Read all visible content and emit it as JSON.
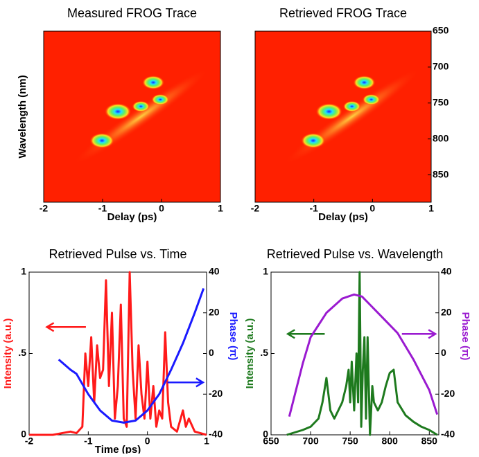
{
  "chart_data": [
    {
      "type": "heatmap",
      "title": "Measured FROG Trace",
      "xlabel": "Delay (ps)",
      "ylabel": "Wavelength (nm)",
      "xlim": [
        -2,
        1
      ],
      "xticks": [
        -2,
        -1,
        0,
        1
      ],
      "color": "#ff2000"
    },
    {
      "type": "heatmap",
      "title": "Retrieved FROG Trace",
      "xlabel": "Delay (ps)",
      "xlim": [
        -2,
        1
      ],
      "xticks": [
        -2,
        -1,
        0,
        1
      ],
      "ylim": [
        888,
        650
      ],
      "yticks": [
        650,
        700,
        750,
        800,
        850
      ],
      "y_axis_side": "right",
      "color": "#ff2000"
    },
    {
      "type": "line",
      "title": "Retrieved Pulse vs. Time",
      "xlabel": "Time (ps)",
      "ylabel": "Intensity (a.u.)",
      "y2label": "Phase (π)",
      "xlim": [
        -2,
        1
      ],
      "xticks": [
        -2,
        -1,
        0,
        1
      ],
      "ylim": [
        0,
        1
      ],
      "yticks": [
        0,
        {
          "value": 0.5,
          "label": ".5"
        },
        1
      ],
      "y2lim": [
        -40,
        40
      ],
      "y2ticks": [
        -40,
        -20,
        0,
        20,
        40
      ],
      "series": [
        {
          "name": "Intensity",
          "color": "#ff1a1a",
          "axis": "y",
          "x": [
            -2,
            -1.6,
            -1.3,
            -1.2,
            -1.1,
            -1.05,
            -1.0,
            -0.95,
            -0.9,
            -0.85,
            -0.8,
            -0.75,
            -0.7,
            -0.65,
            -0.6,
            -0.55,
            -0.5,
            -0.45,
            -0.4,
            -0.35,
            -0.3,
            -0.25,
            -0.2,
            -0.15,
            -0.1,
            -0.05,
            0,
            0.05,
            0.1,
            0.15,
            0.2,
            0.25,
            0.3,
            0.35,
            0.4,
            0.5,
            0.6,
            0.65,
            0.7,
            0.8,
            1.0
          ],
          "values": [
            0,
            0,
            0.02,
            0.01,
            0.05,
            0.5,
            0.3,
            0.6,
            0.2,
            0.55,
            0.35,
            0.4,
            0.95,
            0.3,
            0.75,
            0.1,
            0.3,
            0.8,
            0.1,
            0.05,
            1.0,
            0.4,
            0.1,
            0.55,
            0.25,
            0.1,
            0.45,
            0.1,
            0.3,
            0.05,
            0.15,
            0.1,
            0.63,
            0.2,
            0.05,
            0.02,
            0.15,
            0.05,
            0.1,
            0.02,
            0
          ]
        },
        {
          "name": "Phase",
          "color": "#1a1aff",
          "axis": "y2",
          "x": [
            -1.5,
            -1.3,
            -1.2,
            -1.1,
            -1.0,
            -0.8,
            -0.6,
            -0.4,
            -0.2,
            0,
            0.2,
            0.4,
            0.6,
            0.8,
            0.95
          ],
          "values": [
            -3,
            -8,
            -10,
            -15,
            -20,
            -28,
            -33,
            -34,
            -33,
            -28,
            -20,
            -8,
            5,
            20,
            32
          ]
        }
      ]
    },
    {
      "type": "line",
      "title": "Retrieved Pulse vs. Wavelength",
      "ylabel": "Intensity (a.u.)",
      "y2label": "Phase (π)",
      "xlim": [
        650,
        862
      ],
      "xticks": [
        650,
        700,
        750,
        800,
        850
      ],
      "ylim": [
        0,
        1
      ],
      "yticks": [
        0,
        {
          "value": 0.5,
          "label": ".5"
        },
        1
      ],
      "y2lim": [
        -40,
        40
      ],
      "y2ticks": [
        -40,
        -20,
        0,
        20,
        40
      ],
      "series": [
        {
          "name": "Intensity",
          "color": "#1e7a1e",
          "axis": "y",
          "x": [
            670,
            690,
            700,
            710,
            715,
            720,
            725,
            730,
            740,
            745,
            748,
            750,
            752,
            755,
            758,
            760,
            762,
            764,
            766,
            768,
            770,
            772,
            775,
            778,
            780,
            785,
            790,
            795,
            800,
            805,
            810,
            820,
            830,
            840,
            850,
            860
          ],
          "values": [
            0,
            0.03,
            0.05,
            0.1,
            0.2,
            0.35,
            0.15,
            0.1,
            0.2,
            0.3,
            0.4,
            0.2,
            0.45,
            0.15,
            0.5,
            0.2,
            1.0,
            0.05,
            0.4,
            0.6,
            0.1,
            0.6,
            0,
            0.3,
            0.2,
            0.15,
            0.2,
            0.3,
            0.38,
            0.4,
            0.2,
            0.12,
            0.08,
            0.05,
            0.03,
            0
          ]
        },
        {
          "name": "Phase",
          "color": "#9a1ad0",
          "axis": "y2",
          "x": [
            673,
            690,
            700,
            720,
            740,
            755,
            765,
            775,
            790,
            810,
            830,
            850,
            860
          ],
          "values": [
            -31,
            -5,
            8,
            20,
            27,
            29,
            28,
            24,
            18,
            10,
            -3,
            -18,
            -30
          ]
        }
      ]
    }
  ]
}
